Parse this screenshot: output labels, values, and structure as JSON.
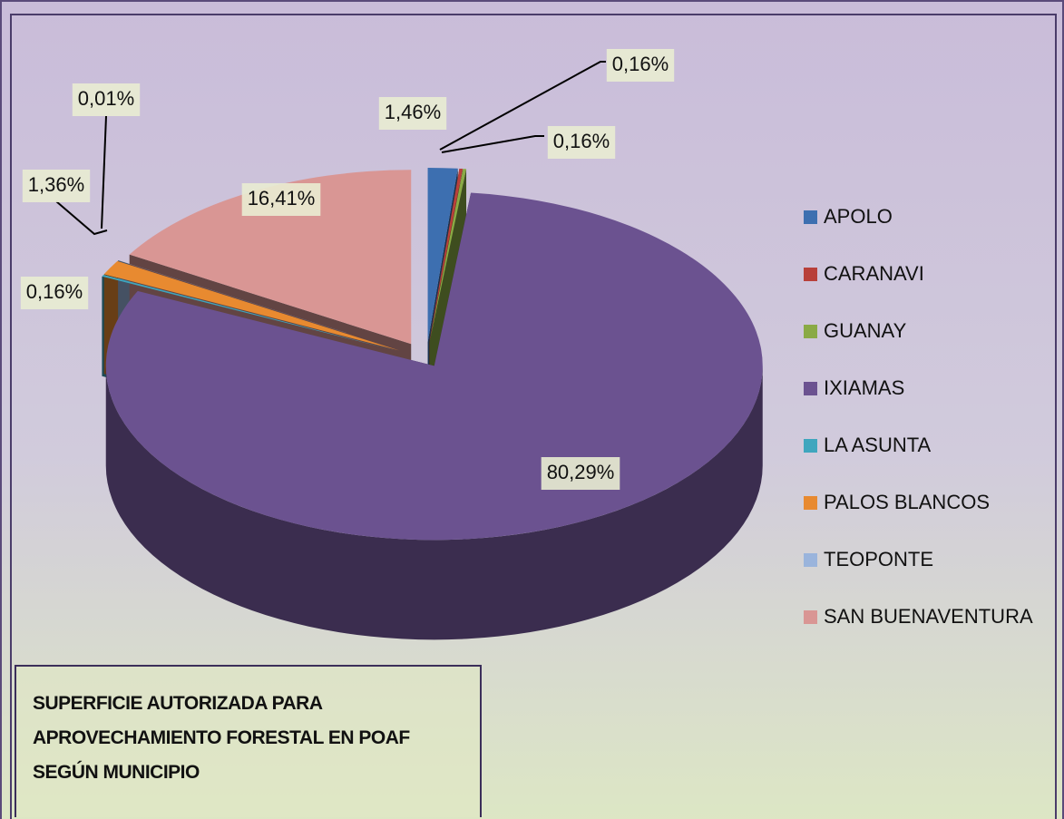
{
  "chart_data": {
    "type": "pie",
    "title": "SUPERFICIE AUTORIZADA PARA APROVECHAMIENTO FORESTAL EN POAF SEGÚN MUNICIPIO",
    "categories": [
      "APOLO",
      "CARANAVI",
      "GUANAY",
      "IXIAMAS",
      "LA ASUNTA",
      "PALOS BLANCOS",
      "TEOPONTE",
      "SAN BUENAVENTURA"
    ],
    "values": [
      1.46,
      0.16,
      0.16,
      80.29,
      0.16,
      1.36,
      0.01,
      16.41
    ],
    "value_labels": [
      "1,46%",
      "0,16%",
      "0,16%",
      "80,29%",
      "0,16%",
      "1,36%",
      "0,01%",
      "16,41%"
    ],
    "colors": [
      "#3d6fb0",
      "#b8403a",
      "#8aaa45",
      "#6b5290",
      "#3fa6be",
      "#e88a30",
      "#9ab4dc",
      "#d99694"
    ],
    "legend": "right"
  }
}
